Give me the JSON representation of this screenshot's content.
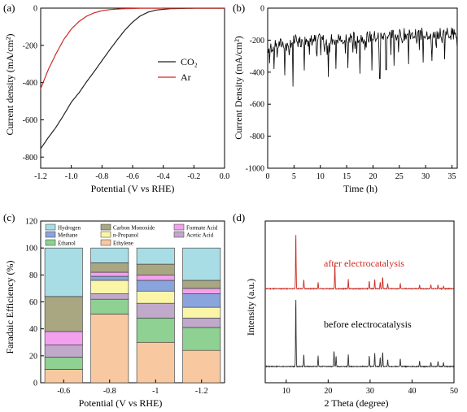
{
  "chart_data": [
    {
      "panel": "(a)",
      "type": "line",
      "xlabel": "Potential (V vs RHE)",
      "ylabel": "Current density (mA/cm²)",
      "xlim": [
        -1.2,
        0.0
      ],
      "ylim": [
        -860,
        0
      ],
      "xticks": [
        -1.2,
        -1.0,
        -0.8,
        -0.6,
        -0.4,
        -0.2,
        0.0
      ],
      "yticks": [
        0,
        -200,
        -400,
        -600,
        -800
      ],
      "legend_position": "center-right",
      "series": [
        {
          "name": "CO₂",
          "color": "#222222",
          "x": [
            -1.2,
            -1.15,
            -1.1,
            -1.05,
            -1.0,
            -0.95,
            -0.9,
            -0.85,
            -0.8,
            -0.75,
            -0.7,
            -0.65,
            -0.6,
            -0.55,
            -0.5,
            -0.45,
            -0.4,
            -0.35,
            -0.3,
            -0.2,
            -0.1,
            0.0
          ],
          "y": [
            -755,
            -695,
            -640,
            -575,
            -505,
            -455,
            -395,
            -340,
            -282,
            -225,
            -170,
            -118,
            -75,
            -42,
            -22,
            -11,
            -6,
            -3,
            -2,
            -1,
            -1,
            -1
          ]
        },
        {
          "name": "Ar",
          "color": "#cc2b24",
          "x": [
            -1.2,
            -1.15,
            -1.1,
            -1.05,
            -1.0,
            -0.95,
            -0.9,
            -0.85,
            -0.8,
            -0.75,
            -0.7,
            -0.65,
            -0.6,
            -0.55,
            -0.5,
            -0.45,
            -0.4,
            -0.35,
            -0.3,
            -0.2,
            -0.1,
            0.0
          ],
          "y": [
            -432,
            -330,
            -245,
            -170,
            -112,
            -72,
            -43,
            -25,
            -14,
            -8,
            -5,
            -3,
            -2,
            -1,
            -1,
            -1,
            0,
            0,
            0,
            0,
            0,
            0
          ]
        }
      ]
    },
    {
      "panel": "(b)",
      "type": "line",
      "xlabel": "Time (h)",
      "ylabel": "Current Density (mA/cm²)",
      "xlim": [
        0,
        36
      ],
      "ylim": [
        -1000,
        0
      ],
      "xticks": [
        0,
        5,
        10,
        15,
        20,
        25,
        30,
        35
      ],
      "yticks": [
        0,
        -200,
        -400,
        -600,
        -800,
        -1000
      ],
      "series": [
        {
          "color": "#000000",
          "x": [
            0,
            2,
            4,
            6,
            8,
            10,
            12,
            14,
            16,
            18,
            20,
            22,
            24,
            26,
            28,
            30,
            32,
            34,
            36
          ],
          "y": [
            -250,
            -230,
            -210,
            -205,
            -200,
            -200,
            -195,
            -190,
            -185,
            -180,
            -180,
            -175,
            -170,
            -165,
            -165,
            -160,
            -160,
            -155,
            -160
          ],
          "dips": [
            [
              4.8,
              -490
            ],
            [
              3.2,
              -420
            ],
            [
              7.0,
              -390
            ],
            [
              11.5,
              -430
            ],
            [
              13.0,
              -380
            ],
            [
              15.2,
              -375
            ],
            [
              17.5,
              -410
            ],
            [
              19.8,
              -390
            ],
            [
              21.3,
              -440
            ],
            [
              22.5,
              -385
            ],
            [
              24.0,
              -360
            ],
            [
              26.8,
              -350
            ],
            [
              29.5,
              -340
            ],
            [
              31.2,
              -330
            ],
            [
              33.6,
              -320
            ]
          ]
        }
      ]
    },
    {
      "panel": "(c)",
      "type": "bar",
      "stacked": true,
      "xlabel": "Potential (V vs RHE)",
      "ylabel": "Faradaic Efficiency (%)",
      "ylim": [
        0,
        120
      ],
      "yticks": [
        0,
        20,
        40,
        60,
        80,
        100,
        120
      ],
      "categories": [
        "-0.6",
        "-0.8",
        "-1",
        "-1.2"
      ],
      "legend_position": "top",
      "series": [
        {
          "name": "Ethylene",
          "color": "#f8c9a1",
          "values": [
            10,
            51,
            30,
            24
          ]
        },
        {
          "name": "Ethanol",
          "color": "#8ed192",
          "values": [
            9,
            11,
            18,
            17
          ]
        },
        {
          "name": "Acetic Acid",
          "color": "#c1a9cb",
          "values": [
            9,
            4,
            11,
            7
          ]
        },
        {
          "name": "n-Propanol",
          "color": "#fbf5a7",
          "values": [
            0,
            10,
            9,
            8
          ]
        },
        {
          "name": "Methane",
          "color": "#8aa4dd",
          "values": [
            0,
            3,
            8,
            10
          ]
        },
        {
          "name": "Formate Acid",
          "color": "#f3a1ee",
          "values": [
            10,
            3,
            4,
            4
          ]
        },
        {
          "name": "Carbon Monoxide",
          "color": "#a8a782",
          "values": [
            26,
            7,
            8,
            6
          ]
        },
        {
          "name": "Hydrogen",
          "color": "#a9dde6",
          "values": [
            36,
            11,
            12,
            24
          ]
        }
      ]
    },
    {
      "panel": "(d)",
      "type": "line",
      "xlabel": "2 Theta (degree)",
      "ylabel": "Intensity (a.u.)",
      "xlim": [
        5,
        50
      ],
      "xticks": [
        10,
        20,
        30,
        40,
        50
      ],
      "annotations": [
        "after electrocatalysis",
        "before electrocatalysis"
      ],
      "series": [
        {
          "name": "after electrocatalysis",
          "color": "#cc2b24",
          "baseline": 0.58,
          "peaks": [
            [
              12.3,
              0.42
            ],
            [
              14.2,
              0.07
            ],
            [
              17.6,
              0.05
            ],
            [
              21.6,
              0.19
            ],
            [
              24.8,
              0.07
            ],
            [
              29.8,
              0.06
            ],
            [
              31.1,
              0.07
            ],
            [
              32.4,
              0.05
            ],
            [
              33.0,
              0.09
            ],
            [
              34.2,
              0.04
            ],
            [
              37.2,
              0.04
            ],
            [
              41.8,
              0.03
            ],
            [
              44.5,
              0.03
            ],
            [
              46.2,
              0.03
            ],
            [
              47.5,
              0.02
            ]
          ]
        },
        {
          "name": "before electrocatalysis",
          "color": "#333333",
          "baseline": 0.0,
          "peaks": [
            [
              12.3,
              0.52
            ],
            [
              14.2,
              0.09
            ],
            [
              17.6,
              0.08
            ],
            [
              21.4,
              0.12
            ],
            [
              21.9,
              0.08
            ],
            [
              24.8,
              0.09
            ],
            [
              29.8,
              0.08
            ],
            [
              31.1,
              0.1
            ],
            [
              32.4,
              0.07
            ],
            [
              33.0,
              0.11
            ],
            [
              34.2,
              0.05
            ],
            [
              37.2,
              0.06
            ],
            [
              41.8,
              0.04
            ],
            [
              44.5,
              0.03
            ],
            [
              46.2,
              0.04
            ],
            [
              47.5,
              0.03
            ]
          ]
        }
      ]
    }
  ]
}
